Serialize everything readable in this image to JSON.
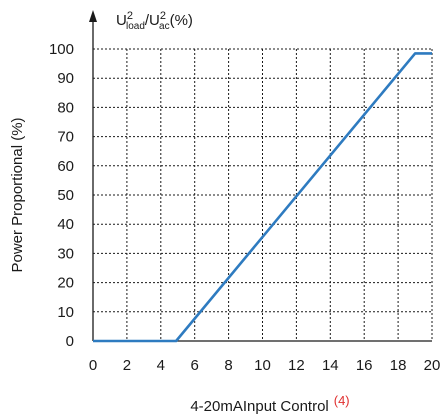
{
  "chart_data": {
    "type": "line",
    "y_title": {
      "base1": "U",
      "sup1": "2",
      "sub1": "load",
      "slash": "/",
      "base2": "U",
      "sup2": "2",
      "sub2": "ac",
      "suffix": "(%)"
    },
    "ylabel": "Power Proportional (%)",
    "xlabel": "4-20mAInput Control",
    "xlabel_note": "(4)",
    "xlim": [
      0,
      20
    ],
    "ylim": [
      0,
      100
    ],
    "xticks": [
      "0",
      "2",
      "4",
      "6",
      "8",
      "10",
      "12",
      "14",
      "16",
      "18",
      "20"
    ],
    "yticks": [
      "0",
      "10",
      "20",
      "30",
      "40",
      "50",
      "60",
      "70",
      "80",
      "90",
      "100"
    ],
    "grid": true,
    "series": [
      {
        "x": [
          0,
          4.9,
          19,
          20
        ],
        "y": [
          0,
          0,
          98.5,
          98.5
        ]
      }
    ],
    "colors": {
      "line": "#2e7bc0",
      "note": "#e03030",
      "grid": "#1a1a1a"
    }
  }
}
